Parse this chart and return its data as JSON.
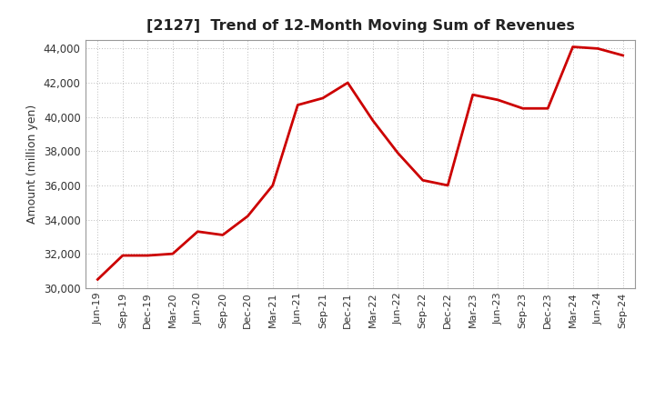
{
  "title": "[2127]  Trend of 12-Month Moving Sum of Revenues",
  "ylabel": "Amount (million yen)",
  "line_color": "#cc0000",
  "background_color": "#ffffff",
  "plot_bg_color": "#f0f0f0",
  "grid_color": "#bbbbbb",
  "ylim": [
    30000,
    44500
  ],
  "yticks": [
    30000,
    32000,
    34000,
    36000,
    38000,
    40000,
    42000,
    44000
  ],
  "labels": [
    "Jun-19",
    "Sep-19",
    "Dec-19",
    "Mar-20",
    "Jun-20",
    "Sep-20",
    "Dec-20",
    "Mar-21",
    "Jun-21",
    "Sep-21",
    "Dec-21",
    "Mar-22",
    "Jun-22",
    "Sep-22",
    "Dec-22",
    "Mar-23",
    "Jun-23",
    "Sep-23",
    "Dec-23",
    "Mar-24",
    "Jun-24",
    "Sep-24"
  ],
  "values": [
    30500,
    31900,
    31900,
    32000,
    33300,
    33100,
    34200,
    36000,
    40700,
    41100,
    42000,
    39800,
    37900,
    36300,
    36000,
    41300,
    41000,
    40500,
    40500,
    44100,
    44000,
    43600
  ]
}
